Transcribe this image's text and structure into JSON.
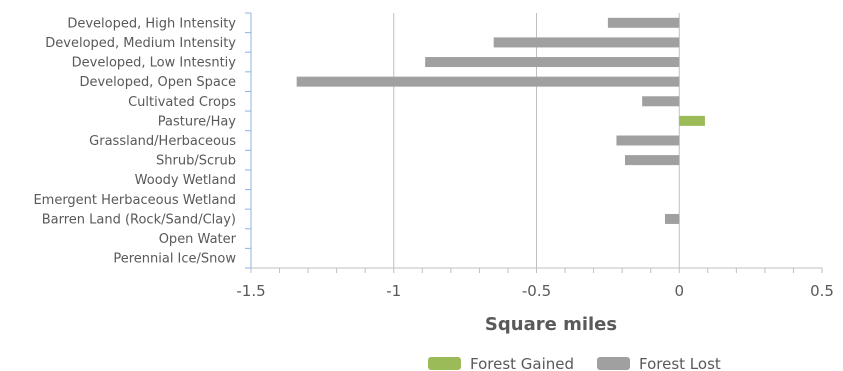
{
  "chart_data": {
    "type": "bar",
    "orientation": "horizontal",
    "categories": [
      "Developed, High Intensity",
      "Developed, Medium Intensity",
      "Developed, Low Intesntiy",
      "Developed, Open Space",
      "Cultivated Crops",
      "Pasture/Hay",
      "Grassland/Herbaceous",
      "Shrub/Scrub",
      "Woody Wetland",
      "Emergent Herbaceous Wetland",
      "Barren Land (Rock/Sand/Clay)",
      "Open Water",
      "Perennial Ice/Snow"
    ],
    "series": [
      {
        "name": "Forest Gained",
        "color": "#9BBB59",
        "values": [
          0,
          0,
          0,
          0,
          0,
          0.09,
          0,
          0,
          0,
          0,
          0,
          0,
          0
        ]
      },
      {
        "name": "Forest Lost",
        "color": "#A0A0A0",
        "values": [
          -0.25,
          -0.65,
          -0.89,
          -1.34,
          -0.13,
          0,
          -0.22,
          -0.19,
          0,
          0,
          -0.05,
          0,
          0
        ]
      }
    ],
    "xlim": [
      -1.5,
      0.5
    ],
    "xticks": [
      -1.5,
      -1,
      -0.5,
      0,
      0.5
    ],
    "xtick_labels": [
      "-1.5",
      "-1",
      "-0.5",
      "0",
      "0.5"
    ],
    "xlabel": "Square miles",
    "ylabel": "",
    "title": "",
    "grid": "vertical major gridlines",
    "legend": "bottom"
  }
}
